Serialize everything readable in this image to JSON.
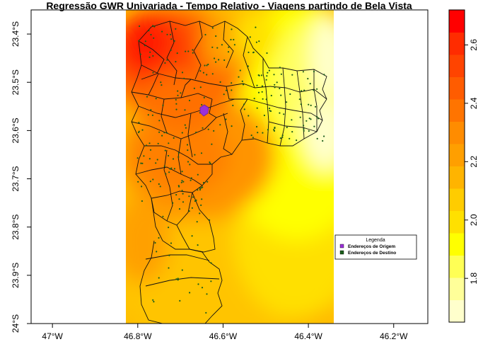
{
  "map": {
    "title": "Regressão GWR Univariada - Tempo Relativo - Viagens partindo de Bela Vista",
    "x_ticks": [
      {
        "value": -47.0,
        "label": "47°W"
      },
      {
        "value": -46.8,
        "label": "46.8°W"
      },
      {
        "value": -46.6,
        "label": "46.6°W"
      },
      {
        "value": -46.4,
        "label": "46.4°W"
      },
      {
        "value": -46.2,
        "label": "46.2°W"
      }
    ],
    "y_ticks": [
      {
        "value": -23.4,
        "label": "23.4°S"
      },
      {
        "value": -23.5,
        "label": "23.5°S"
      },
      {
        "value": -23.6,
        "label": "23.6°S"
      },
      {
        "value": -23.7,
        "label": "23.7°S"
      },
      {
        "value": -23.8,
        "label": "23.8°S"
      },
      {
        "value": -23.9,
        "label": "23.9°S"
      },
      {
        "value": -24.0,
        "label": "24°S"
      }
    ],
    "xlim": [
      -47.05,
      -46.12
    ],
    "ylim": [
      -24.0,
      -23.35
    ],
    "raster_extent_lon": [
      -46.83,
      -46.35
    ],
    "legend": {
      "title": "Legenda",
      "items": [
        {
          "label": "Endereços de Origem",
          "color": "#9b30d9"
        },
        {
          "label": "Endereços de Destino",
          "color": "#1a5e1a"
        }
      ],
      "placement": "bottom-right"
    },
    "colorbar": {
      "range": [
        1.65,
        2.72
      ],
      "ticks": [
        {
          "value": 1.8,
          "label": "1.8"
        },
        {
          "value": 2.0,
          "label": "2.0"
        },
        {
          "value": 2.2,
          "label": "2.2"
        },
        {
          "value": 2.4,
          "label": "2.4"
        },
        {
          "value": 2.6,
          "label": "2.6"
        }
      ],
      "colors": [
        "#ffffcc",
        "#ffff99",
        "#ffff55",
        "#ffff00",
        "#ffe000",
        "#ffcc00",
        "#ffb400",
        "#ff9f00",
        "#ff8c00",
        "#ff7400",
        "#ff5c00",
        "#ff4400",
        "#ff2c00",
        "#ff0000"
      ]
    }
  }
}
